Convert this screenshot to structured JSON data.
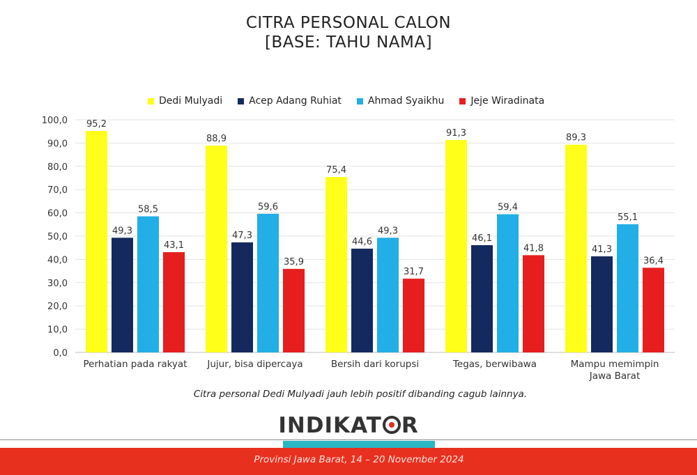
{
  "title": {
    "line1": "CITRA PERSONAL CALON",
    "line2": "[BASE: TAHU NAMA]"
  },
  "legend": [
    {
      "name": "Dedi Mulyadi",
      "color": "#ffff1a"
    },
    {
      "name": "Acep Adang Ruhiat",
      "color": "#14295e"
    },
    {
      "name": "Ahmad Syaikhu",
      "color": "#22aee6"
    },
    {
      "name": "Jeje Wiradinata",
      "color": "#e61e1e"
    }
  ],
  "chart_data": {
    "type": "bar",
    "categories": [
      [
        "Perhatian pada rakyat"
      ],
      [
        "Jujur, bisa dipercaya"
      ],
      [
        "Bersih dari korupsi"
      ],
      [
        "Tegas, berwibawa"
      ],
      [
        "Mampu memimpin",
        "Jawa Barat"
      ]
    ],
    "series": [
      {
        "name": "Dedi Mulyadi",
        "color": "#ffff1a",
        "values": [
          95.2,
          88.9,
          75.4,
          91.3,
          89.3
        ],
        "labels": [
          "95,2",
          "88,9",
          "75,4",
          "91,3",
          "89,3"
        ]
      },
      {
        "name": "Acep Adang Ruhiat",
        "color": "#14295e",
        "values": [
          49.3,
          47.3,
          44.6,
          46.1,
          41.3
        ],
        "labels": [
          "49,3",
          "47,3",
          "44,6",
          "46,1",
          "41,3"
        ]
      },
      {
        "name": "Ahmad Syaikhu",
        "color": "#22aee6",
        "values": [
          58.5,
          59.6,
          49.3,
          59.4,
          55.1
        ],
        "labels": [
          "58,5",
          "59,6",
          "49,3",
          "59,4",
          "55,1"
        ]
      },
      {
        "name": "Jeje Wiradinata",
        "color": "#e61e1e",
        "values": [
          43.1,
          35.9,
          31.7,
          41.8,
          36.4
        ],
        "labels": [
          "43,1",
          "35,9",
          "31,7",
          "41,8",
          "36,4"
        ]
      }
    ],
    "ylim": [
      0,
      100
    ],
    "yticks": [
      "0,0",
      "10,0",
      "20,0",
      "30,0",
      "40,0",
      "50,0",
      "60,0",
      "70,0",
      "80,0",
      "90,0",
      "100,0"
    ],
    "grid": true,
    "legend_position": "top"
  },
  "caption": "Citra personal Dedi Mulyadi jauh lebih positif dibanding cagub lainnya.",
  "logo": {
    "part1": "INDIKAT",
    "part2": "R"
  },
  "footer": "Provinsi Jawa Barat, 14 – 20 November 2024",
  "colors": {
    "footer_red": "#e8301f",
    "footer_teal": "#29b6c5"
  }
}
